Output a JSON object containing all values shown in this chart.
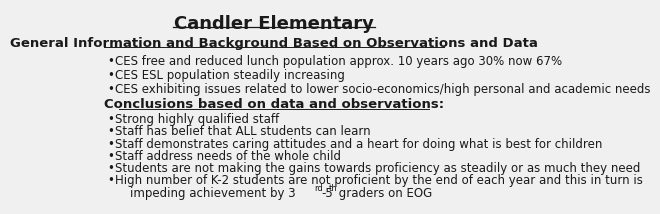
{
  "title": "Candler Elementary",
  "background_color": "#f0f0f0",
  "section1_heading": "General Information and Background Based on Observations and Data",
  "section1_bullets": [
    "CES free and reduced lunch population approx. 10 years ago 30% now 67%",
    "CES ESL population steadily increasing",
    "CES exhibiting issues related to lower socio-economics/high personal and academic needs"
  ],
  "section2_heading": "Conclusions based on data and observations:",
  "section2_bullets": [
    "Strong highly qualified staff",
    "Staff has belief that ALL students can learn",
    "Staff demonstrates caring attitudes and a heart for doing what is best for children",
    "Staff address needs of the whole child",
    "Students are not making the gains towards proficiency as steadily or as much they need",
    "High number of K-2 students are not proficient by the end of each year and this in turn is"
  ],
  "last_bullet_line2": "    impeding achievement by 3",
  "last_bullet_sup1": "rd",
  "last_bullet_mid": "-5",
  "last_bullet_sup2": "th",
  "last_bullet_end": " graders on EOG",
  "text_color": "#1a1a1a",
  "font_family": "DejaVu Sans",
  "title_fontsize": 13,
  "heading_fontsize": 9.5,
  "bullet_fontsize": 8.5
}
